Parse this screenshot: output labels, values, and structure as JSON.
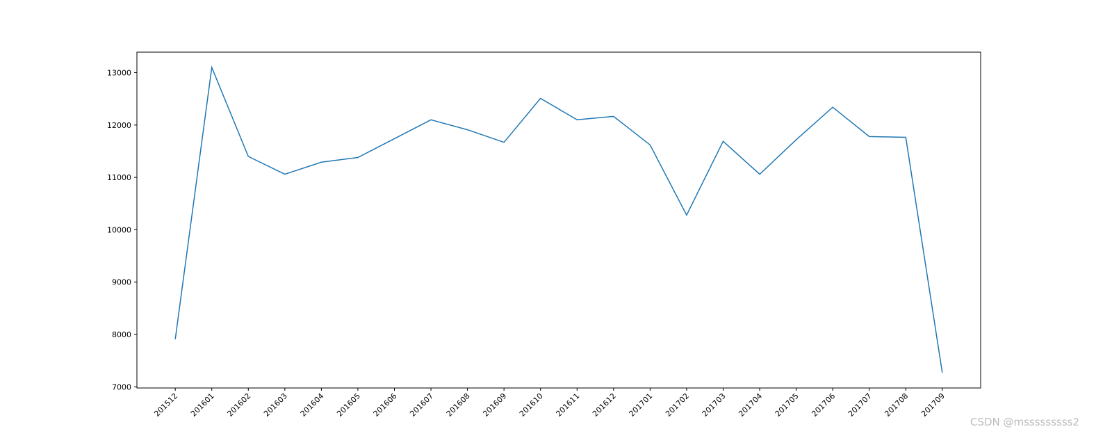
{
  "chart_data": {
    "type": "line",
    "categories": [
      "201512",
      "201601",
      "201602",
      "201603",
      "201604",
      "201605",
      "201606",
      "201607",
      "201608",
      "201609",
      "201610",
      "201611",
      "201612",
      "201701",
      "201702",
      "201703",
      "201704",
      "201705",
      "201706",
      "201707",
      "201708",
      "201709"
    ],
    "series": [
      {
        "color": "#1f77b4",
        "values": [
          7910,
          13100,
          11400,
          11060,
          11290,
          11380,
          11740,
          12100,
          11910,
          11670,
          12510,
          12100,
          12165,
          11620,
          10280,
          11690,
          11060,
          11720,
          12340,
          11780,
          11765,
          7270
        ]
      }
    ],
    "ylim": [
      6978,
      13392
    ],
    "yticks": [
      7000,
      8000,
      9000,
      10000,
      11000,
      12000,
      13000
    ]
  },
  "watermark": "CSDN @msssssssss2"
}
